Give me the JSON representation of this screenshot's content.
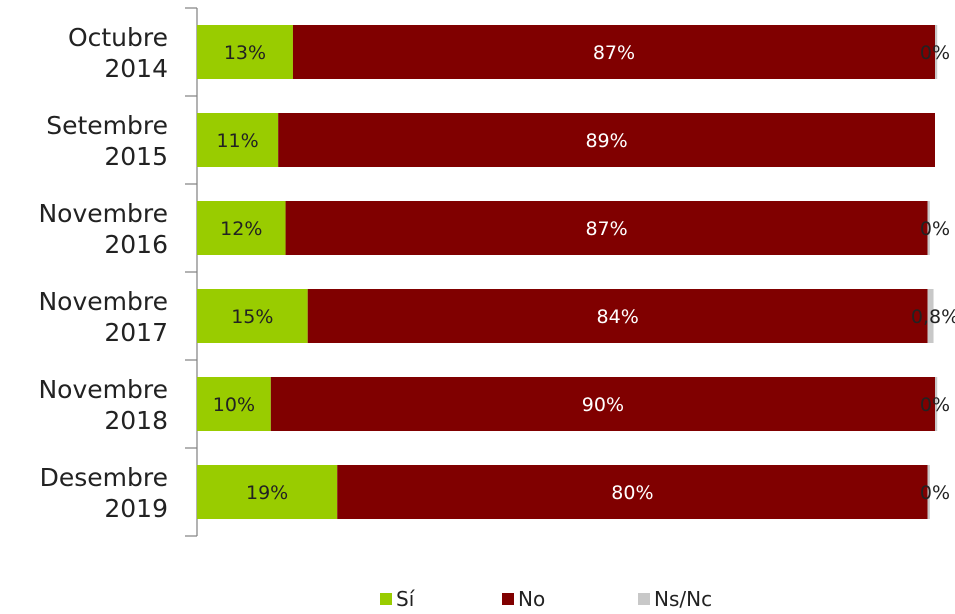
{
  "chart_data": {
    "type": "bar",
    "orientation": "horizontal",
    "stacked": true,
    "percent_scale": true,
    "categories": [
      [
        "Octubre",
        "2014"
      ],
      [
        "Setembre",
        "2015"
      ],
      [
        "Novembre",
        "2016"
      ],
      [
        "Novembre",
        "2017"
      ],
      [
        "Novembre",
        "2018"
      ],
      [
        "Desembre",
        "2019"
      ]
    ],
    "series": [
      {
        "name": "Sí",
        "color": "#99cc00",
        "values": [
          13,
          11,
          12,
          15,
          10,
          19
        ],
        "labels": [
          "13%",
          "11%",
          "12%",
          "15%",
          "10%",
          "19%"
        ],
        "label_color": "#222222"
      },
      {
        "name": "No",
        "color": "#800000",
        "values": [
          87,
          89,
          87,
          84,
          90,
          80
        ],
        "labels": [
          "87%",
          "89%",
          "87%",
          "84%",
          "90%",
          "80%"
        ],
        "label_color": "#ffffff"
      },
      {
        "name": "Ns/Nc",
        "color": "#c8c8c8",
        "values": [
          0.3,
          0,
          0.3,
          0.8,
          0.3,
          0.3
        ],
        "labels": [
          "0%",
          "",
          "0%",
          "0,8%",
          "0%",
          "0%"
        ],
        "label_color": "#222222"
      }
    ],
    "legend_position": "bottom",
    "grid": false,
    "xlim": [
      0,
      100
    ]
  }
}
